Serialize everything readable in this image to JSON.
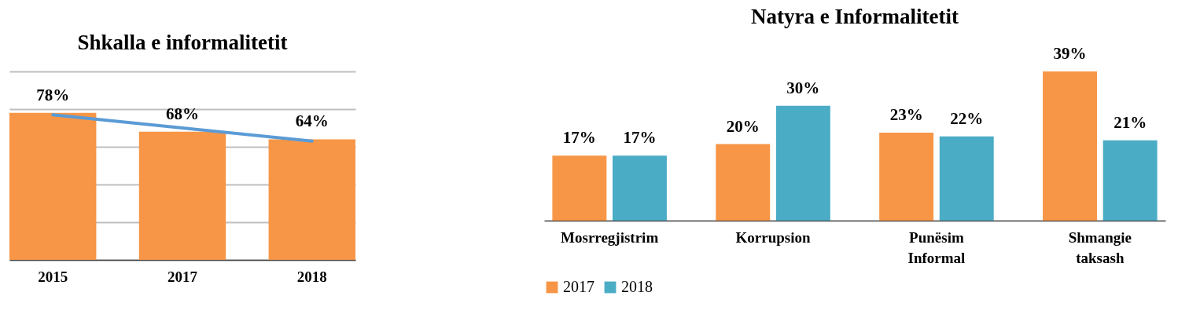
{
  "chart_data": [
    {
      "type": "bar",
      "title": "Shkalla e informalitetit",
      "categories": [
        "2015",
        "2017",
        "2018"
      ],
      "series": [
        {
          "type": "bar",
          "color": "#f79646",
          "values": [
            78,
            68,
            64
          ],
          "value_labels": [
            "78%",
            "68%",
            "64%"
          ]
        },
        {
          "type": "line",
          "color": "#5b9bd5",
          "values": [
            77,
            70,
            63
          ]
        }
      ],
      "ylim": [
        0,
        100
      ],
      "yticks": [
        {
          "value": 0,
          "label": null
        },
        {
          "value": 20,
          "label": null
        },
        {
          "value": 40,
          "label": null
        },
        {
          "value": 60,
          "label": null
        },
        {
          "value": 80,
          "label": null
        },
        {
          "value": 100,
          "label": null
        }
      ],
      "grid": "y",
      "tick_labels": "x",
      "legend": false
    },
    {
      "type": "bar",
      "title": "Natyra e Informalitetit",
      "categories": [
        "Mosrregjistrim",
        "Korrupsion",
        "Punësim Informal",
        "Shmangie taksash"
      ],
      "series": [
        {
          "name": "2017",
          "color": "#f79646",
          "values": [
            17,
            20,
            23,
            39
          ],
          "value_labels": [
            "17%",
            "20%",
            "23%",
            "39%"
          ]
        },
        {
          "name": "2018",
          "color": "#4bacc6",
          "values": [
            17,
            30,
            22,
            21
          ],
          "value_labels": [
            "17%",
            "30%",
            "22%",
            "21%"
          ]
        }
      ],
      "tick_labels": "x",
      "legend": "bottom"
    }
  ]
}
